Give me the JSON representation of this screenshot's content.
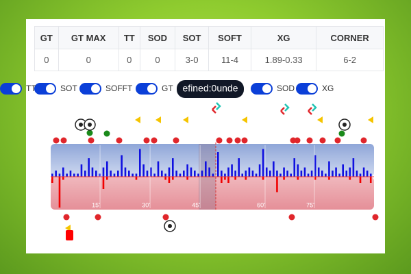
{
  "table": {
    "headers": [
      "GT",
      "GT MAX",
      "TT",
      "SOD",
      "SOT",
      "SOFT",
      "XG",
      "CORNER"
    ],
    "rows": [
      [
        0,
        0,
        0,
        0,
        "3-0",
        "11-4",
        "1.89-0.33",
        "6-2"
      ]
    ]
  },
  "toggles": [
    "SOT",
    "SOFFT",
    "GT",
    "TT",
    "SOD",
    "XG"
  ],
  "tooltip": "efined:0unde",
  "timeline": {
    "ticks": [
      {
        "value": 15,
        "label": "15'"
      },
      {
        "value": 30,
        "label": "30'"
      },
      {
        "value": 45,
        "label": "45'"
      },
      {
        "value": 60,
        "label": "60'"
      },
      {
        "value": 75,
        "label": "75'"
      }
    ],
    "home": [
      1,
      2,
      1,
      3,
      1,
      2,
      1,
      1,
      4,
      2,
      6,
      3,
      2,
      1,
      3,
      5,
      2,
      1,
      2,
      7,
      3,
      2,
      1,
      1,
      9,
      4,
      2,
      3,
      1,
      5,
      2,
      1,
      3,
      6,
      2,
      1,
      2,
      4,
      3,
      2,
      1,
      2,
      5,
      3,
      1,
      8,
      2,
      1,
      3,
      4,
      2,
      6,
      1,
      2,
      3,
      2,
      1,
      4,
      9,
      3,
      2,
      5,
      2,
      1,
      3,
      2,
      1,
      6,
      4,
      2,
      3,
      1,
      2,
      7,
      3,
      2,
      1,
      5,
      2,
      3,
      1,
      4,
      2,
      3,
      6,
      2,
      1,
      3,
      2,
      1
    ],
    "away": [
      2,
      0,
      10,
      1,
      0,
      0,
      0,
      0,
      0,
      0,
      0,
      0,
      0,
      0,
      4,
      1,
      0,
      0,
      0,
      0,
      0,
      0,
      0,
      1,
      0,
      0,
      0,
      0,
      0,
      0,
      0,
      1,
      2,
      1,
      0,
      0,
      0,
      1,
      0,
      0,
      0,
      0,
      0,
      0,
      0,
      0,
      2,
      1,
      2,
      0,
      1,
      0,
      0,
      1,
      0,
      0,
      0,
      0,
      1,
      0,
      0,
      0,
      5,
      0,
      1,
      0,
      0,
      0,
      1,
      0,
      0,
      0,
      0,
      1,
      0,
      0,
      0,
      1,
      0,
      0,
      0,
      0,
      0,
      1,
      0,
      0,
      2,
      0,
      0,
      2
    ]
  }
}
